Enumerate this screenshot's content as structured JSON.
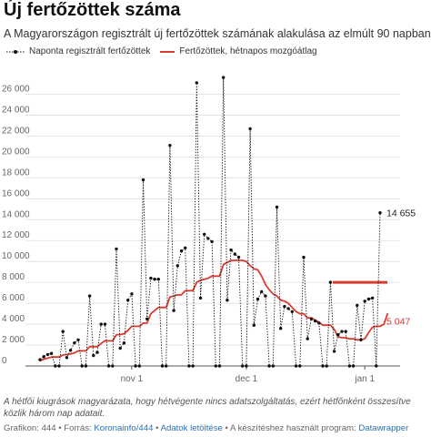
{
  "title": "Új fertőzöttek száma",
  "subtitle": "A Magyarországon regisztrált új fertőzöttek számának alakulása az elmúlt 90 napban",
  "legend": {
    "daily": "Naponta regisztrált fertőzöttek",
    "avg": "Fertőzöttek, hétnapos mozgóátlag"
  },
  "note": "A hétfői kiugrások magyarázata, hogy hétvégente nincs adatszolgáltatás, ezért hétfőnként összesítve közlik három nap adatait.",
  "footer": {
    "prefix": "Grafikon: 444 • Forrás: ",
    "source": "Koronainfo/444",
    "sep1": " • ",
    "download": "Adatok letöltése",
    "sep2": " • A készítéshez használt program: ",
    "tool": "Datawrapper"
  },
  "colors": {
    "daily": "#111111",
    "avg": "#d93b30",
    "grid": "#dddddd",
    "axis": "#888888"
  },
  "chart_data": {
    "type": "line",
    "x_start": "2020-10-08",
    "ylim": [
      0,
      27000
    ],
    "yticks": [
      0,
      2000,
      4000,
      6000,
      8000,
      10000,
      12000,
      14000,
      16000,
      18000,
      20000,
      22000,
      24000,
      26000
    ],
    "ytick_labels": [
      "0",
      "2 000",
      "4 000",
      "6 000",
      "8 000",
      "10 000",
      "12 000",
      "14 000",
      "16 000",
      "18 000",
      "20 000",
      "22 000",
      "24 000",
      "26 000"
    ],
    "xticks": [
      {
        "index": 24,
        "label": "nov 1"
      },
      {
        "index": 54,
        "label": "dec 1"
      },
      {
        "index": 85,
        "label": "jan 1"
      }
    ],
    "series": [
      {
        "name": "Naponta regisztrált fertőzöttek",
        "style": "dotted-markers",
        "values": [
          600,
          900,
          1100,
          1200,
          0,
          0,
          3300,
          800,
          1500,
          2200,
          2500,
          0,
          0,
          6700,
          1000,
          1300,
          4000,
          4000,
          0,
          0,
          11200,
          1700,
          2200,
          6300,
          6900,
          0,
          0,
          17800,
          4500,
          8400,
          8300,
          8300,
          0,
          0,
          21100,
          5300,
          9600,
          11000,
          11300,
          0,
          0,
          27100,
          6500,
          12600,
          12200,
          11900,
          0,
          0,
          27600,
          6300,
          11100,
          10700,
          10400,
          0,
          0,
          22700,
          3900,
          6400,
          7100,
          6700,
          0,
          0,
          15200,
          3600,
          5700,
          5500,
          5200,
          0,
          0,
          10400,
          2600,
          4500,
          4300,
          4100,
          0,
          0,
          8000,
          1400,
          3000,
          3300,
          3300,
          0,
          0,
          5800,
          2500,
          6200,
          6400,
          6500,
          0,
          14655
        ]
      },
      {
        "name": "Fertőzöttek, hétnapos mozgóátlag",
        "style": "solid",
        "values": [
          500,
          650,
          750,
          850,
          850,
          850,
          1050,
          1100,
          1150,
          1250,
          1450,
          1450,
          1450,
          1850,
          1850,
          1850,
          2150,
          2400,
          2400,
          2400,
          3000,
          3000,
          3100,
          3400,
          3800,
          3800,
          3800,
          4100,
          4100,
          5000,
          5300,
          5600,
          5600,
          5600,
          6600,
          6700,
          6800,
          6800,
          7200,
          7200,
          7200,
          8000,
          8200,
          8300,
          8400,
          8600,
          8600,
          8600,
          9700,
          9900,
          10100,
          10100,
          10100,
          10100,
          10000,
          9600,
          9300,
          9200,
          8600,
          7800,
          7300,
          6900,
          6700,
          6300,
          6200,
          6000,
          5600,
          5200,
          5000,
          5000,
          4600,
          4600,
          4400,
          4200,
          3900,
          3900,
          3900,
          3500,
          2800,
          2700,
          2700,
          2600,
          2600,
          2500,
          2500,
          2600,
          3200,
          3700,
          3800,
          3800,
          4000,
          5047
        ]
      }
    ],
    "end_labels": {
      "daily": "14 655",
      "avg": "5 047"
    }
  }
}
